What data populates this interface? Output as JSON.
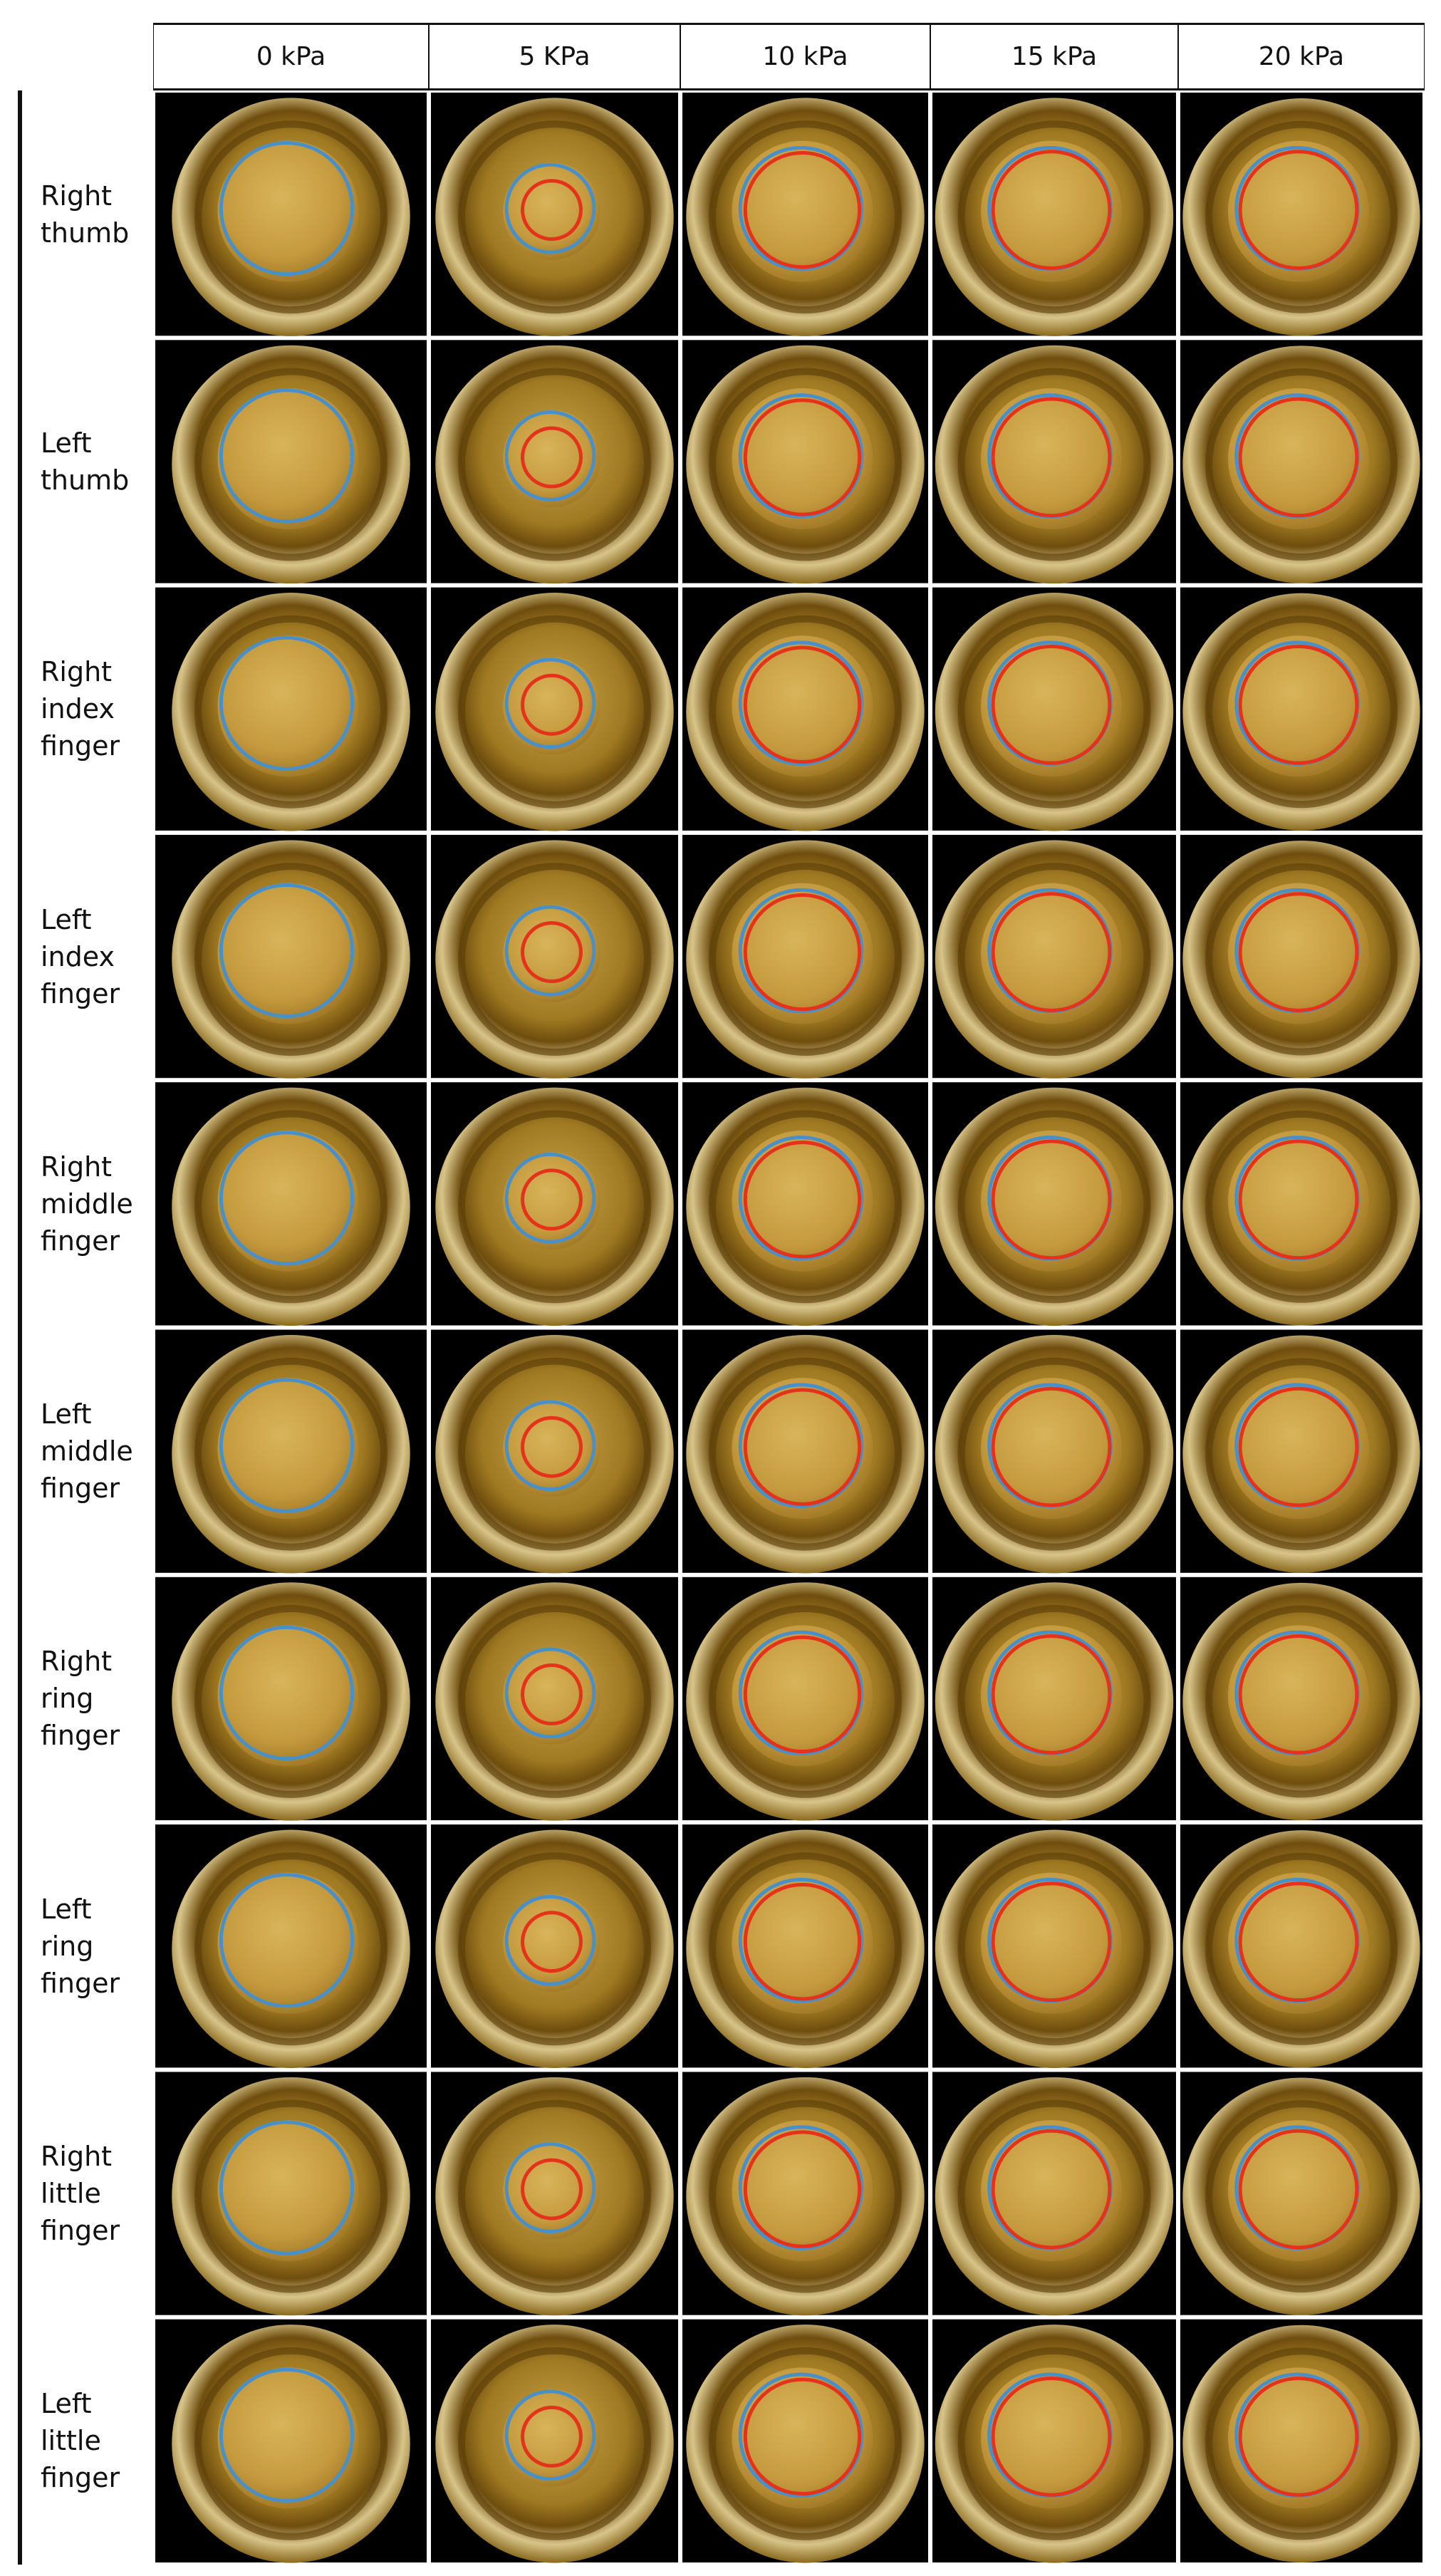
{
  "table": {
    "header": [
      "0 kPa",
      "5 KPa",
      "10 kPa",
      "15 kPa",
      "20 kPa"
    ],
    "rows": [
      "Right thumb",
      "Left thumb",
      "Right index finger",
      "Left index finger",
      "Right middle finger",
      "Left middle finger",
      "Right ring finger",
      "Left ring finger",
      "Right little finger",
      "Left little finger"
    ]
  }
}
